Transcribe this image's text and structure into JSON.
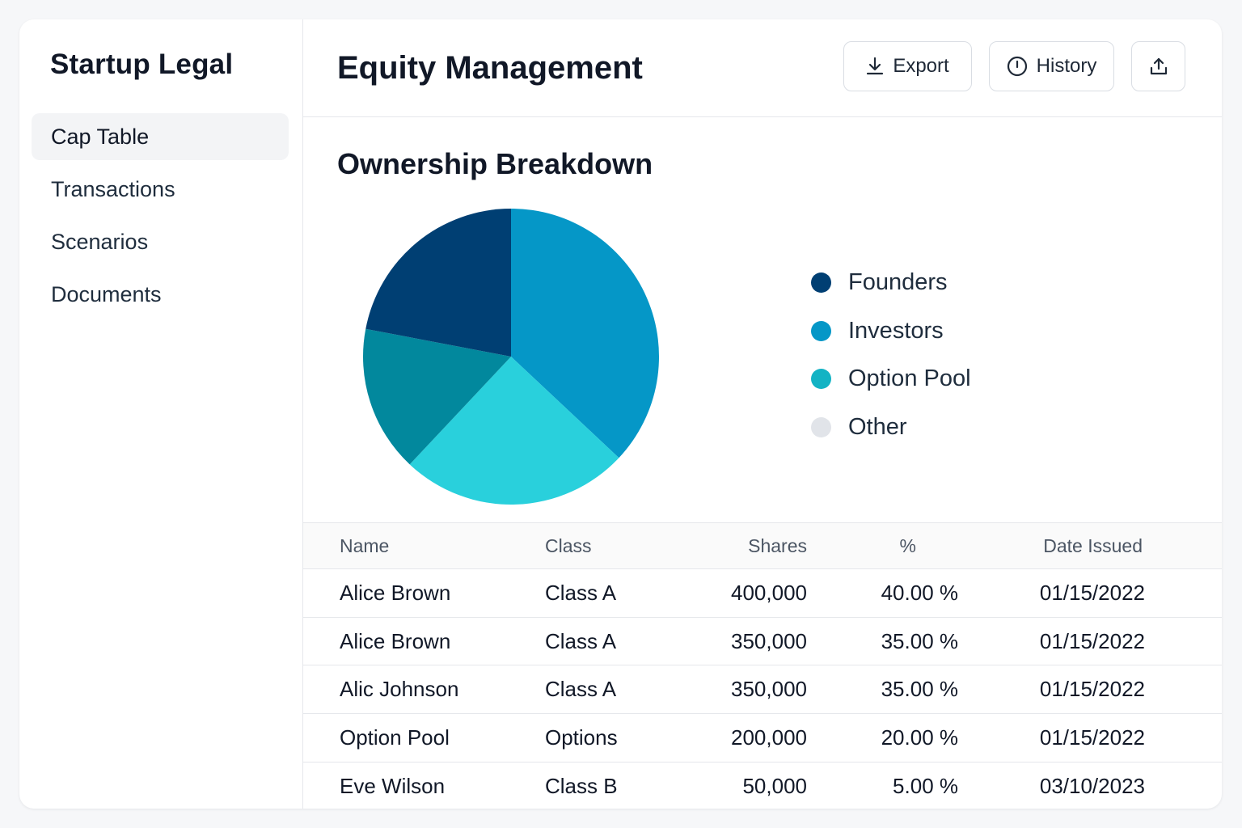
{
  "sidebar": {
    "brand": "Startup Legal",
    "items": [
      {
        "label": "Cap Table",
        "active": true
      },
      {
        "label": "Transactions",
        "active": false
      },
      {
        "label": "Scenarios",
        "active": false
      },
      {
        "label": "Documents",
        "active": false
      }
    ]
  },
  "header": {
    "title": "Equity Management",
    "export_label": "Export",
    "history_label": "History",
    "export_icon": "download-icon",
    "history_icon": "clock-icon",
    "share_icon": "share-upload-icon"
  },
  "ownership": {
    "title": "Ownership Breakdown"
  },
  "chart_data": {
    "type": "pie",
    "categories": [
      "Founders",
      "Investors",
      "Option Pool",
      "Other"
    ],
    "values": [
      22,
      37,
      25,
      16
    ],
    "slice_colors": [
      "#003f73",
      "#0597c7",
      "#29d0dc",
      "#02889d"
    ],
    "legend": [
      {
        "label": "Founders",
        "color": "#003f73"
      },
      {
        "label": "Investors",
        "color": "#0597c7"
      },
      {
        "label": "Option Pool",
        "color": "#13b3c4"
      },
      {
        "label": "Other",
        "color": "#e1e4e9"
      }
    ],
    "legend_position": "right"
  },
  "table": {
    "columns": [
      "Name",
      "Class",
      "Shares",
      "%",
      "Date Issued"
    ],
    "rows": [
      {
        "name": "Alice Brown",
        "class": "Class A",
        "shares": "400,000",
        "pct": "40.00 %",
        "date": "01/15/2022"
      },
      {
        "name": "Alice Brown",
        "class": "Class A",
        "shares": "350,000",
        "pct": "35.00 %",
        "date": "01/15/2022"
      },
      {
        "name": "Alic Johnson",
        "class": "Class A",
        "shares": "350,000",
        "pct": "35.00 %",
        "date": "01/15/2022"
      },
      {
        "name": "Option Pool",
        "class": "Options",
        "shares": "200,000",
        "pct": "20.00 %",
        "date": "01/15/2022"
      },
      {
        "name": "Eve Wilson",
        "class": "Class B",
        "shares": "50,000",
        "pct": "5.00 %",
        "date": "03/10/2023"
      }
    ]
  }
}
